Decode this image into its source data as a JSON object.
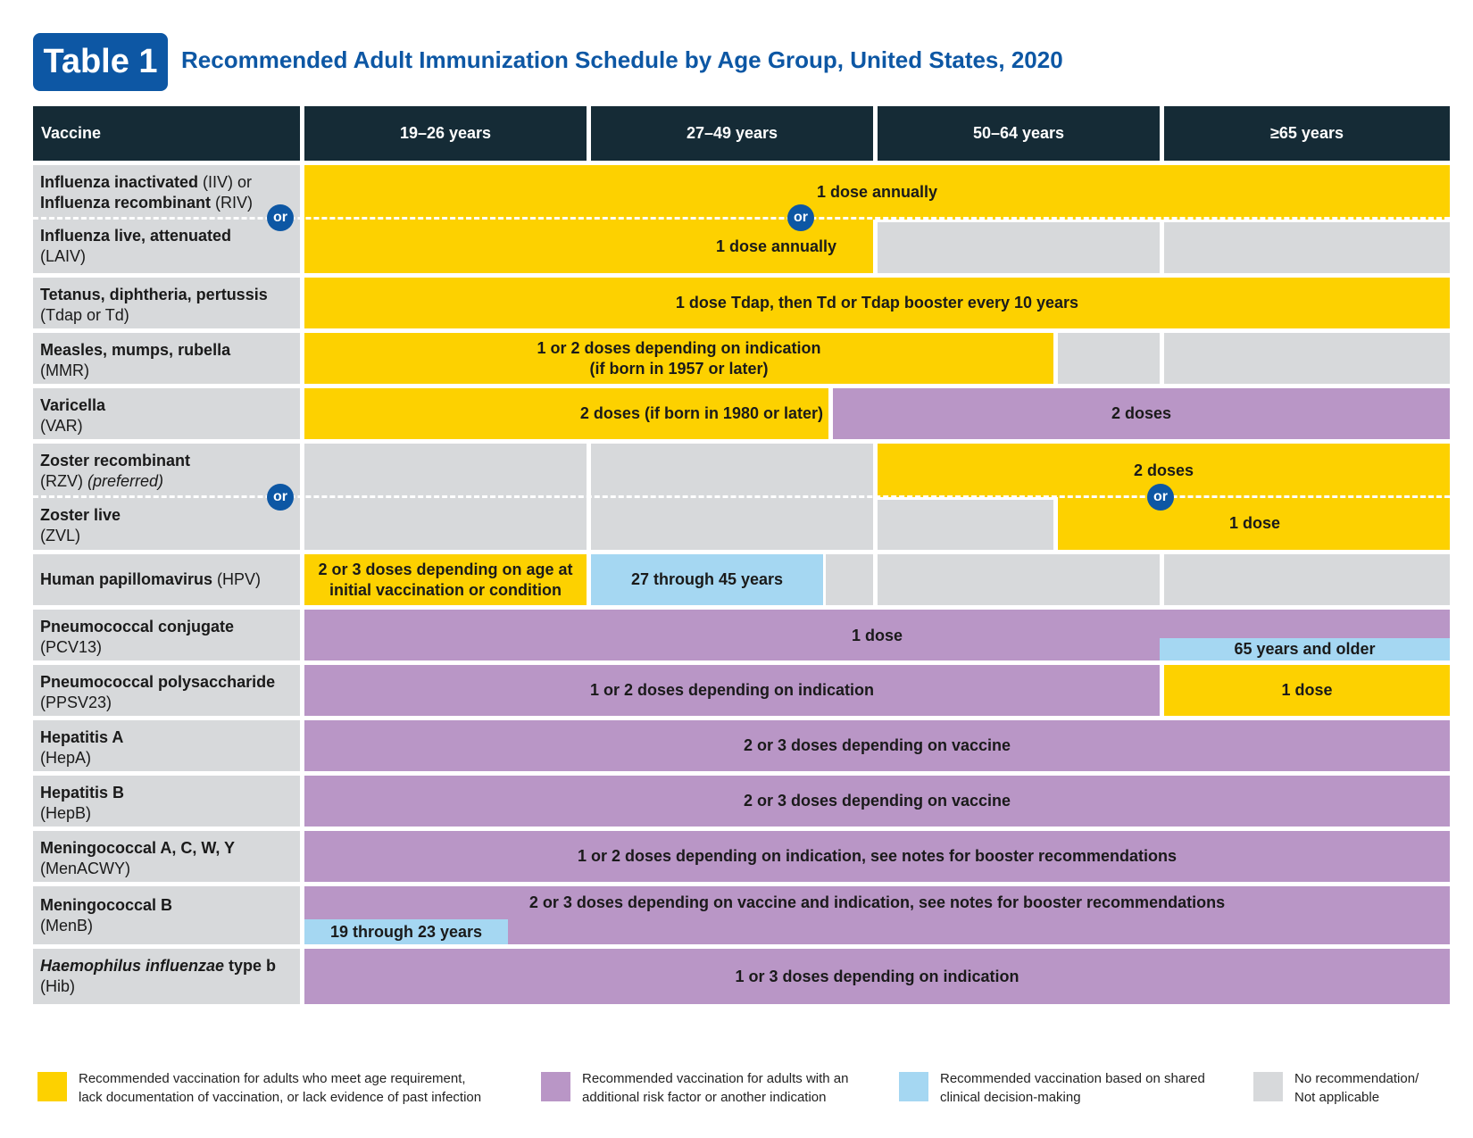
{
  "header": {
    "badge": "Table 1",
    "title": "Recommended Adult Immunization Schedule by Age Group, United States, 2020"
  },
  "columns": {
    "vaccine": "Vaccine",
    "age1": "19–26 years",
    "age2": "27–49 years",
    "age3": "50–64 years",
    "age4": "≥65 years"
  },
  "or_label": "or",
  "rows": {
    "flu": {
      "name1": "Influenza inactivated",
      "abbr1": " (IIV) or",
      "name2": "Influenza recombinant",
      "abbr2": " (RIV)",
      "name3": "Influenza live, attenuated",
      "abbr3": "(LAIV)",
      "top": "1 dose annually",
      "bottom": "1 dose annually"
    },
    "tdap": {
      "name": "Tetanus, diphtheria, pertussis",
      "abbr": "(Tdap or Td)",
      "cell": "1 dose Tdap, then Td or Tdap booster every 10 years"
    },
    "mmr": {
      "name": "Measles, mumps, rubella",
      "abbr": "(MMR)",
      "line1": "1 or 2 doses depending on indication",
      "line2": "(if born in 1957 or later)"
    },
    "var": {
      "name": "Varicella",
      "abbr": "(VAR)",
      "yellow": "2 doses (if born in 1980 or later)",
      "purple": "2 doses"
    },
    "zoster": {
      "name1": "Zoster recombinant",
      "abbr1": "(RZV)",
      "pref": " (preferred)",
      "name2": "Zoster live",
      "abbr2": "(ZVL)",
      "top": "2 doses",
      "bottom": "1 dose"
    },
    "hpv": {
      "name": "Human papillomavirus",
      "abbr": " (HPV)",
      "yellow1": "2 or 3 doses depending on age at",
      "yellow2": "initial vaccination or condition",
      "blue": "27 through 45 years"
    },
    "pcv": {
      "name": "Pneumococcal conjugate",
      "abbr": "(PCV13)",
      "purple": "1 dose",
      "blue": "65 years and older"
    },
    "ppsv": {
      "name": "Pneumococcal polysaccharide",
      "abbr": "(PPSV23)",
      "purple": "1 or 2 doses depending on indication",
      "yellow": "1 dose"
    },
    "hepa": {
      "name": "Hepatitis A",
      "abbr": "(HepA)",
      "cell": "2 or 3 doses depending on vaccine"
    },
    "hepb": {
      "name": "Hepatitis B",
      "abbr": "(HepB)",
      "cell": "2 or 3 doses depending on vaccine"
    },
    "menacwy": {
      "name": "Meningococcal A, C, W, Y",
      "abbr": "(MenACWY)",
      "cell": "1 or 2 doses depending on indication, see notes for booster recommendations"
    },
    "menb": {
      "name": "Meningococcal B",
      "abbr": "(MenB)",
      "cell": "2 or 3 doses depending on vaccine and indication, see notes for booster recommendations",
      "blue": "19 through 23 years"
    },
    "hib": {
      "name_italic": "Haemophilus influenzae",
      "name": " type b",
      "abbr": "(Hib)",
      "cell": "1 or 3 doses depending on indication"
    }
  },
  "legend": {
    "yellow1": "Recommended vaccination for adults who meet age requirement,",
    "yellow2": "lack documentation of vaccination, or lack evidence of past infection",
    "purple1": "Recommended vaccination for adults with an",
    "purple2": "additional risk factor or another indication",
    "blue1": "Recommended vaccination based on shared",
    "blue2": "clinical decision-making",
    "gray1": "No recommendation/",
    "gray2": "Not applicable"
  },
  "colors": {
    "yellow": "#fdd100",
    "purple": "#b996c6",
    "blue": "#a5d7f2",
    "gray": "#d7d9db",
    "header_dark": "#152b36",
    "brand_blue": "#0d57a4"
  }
}
